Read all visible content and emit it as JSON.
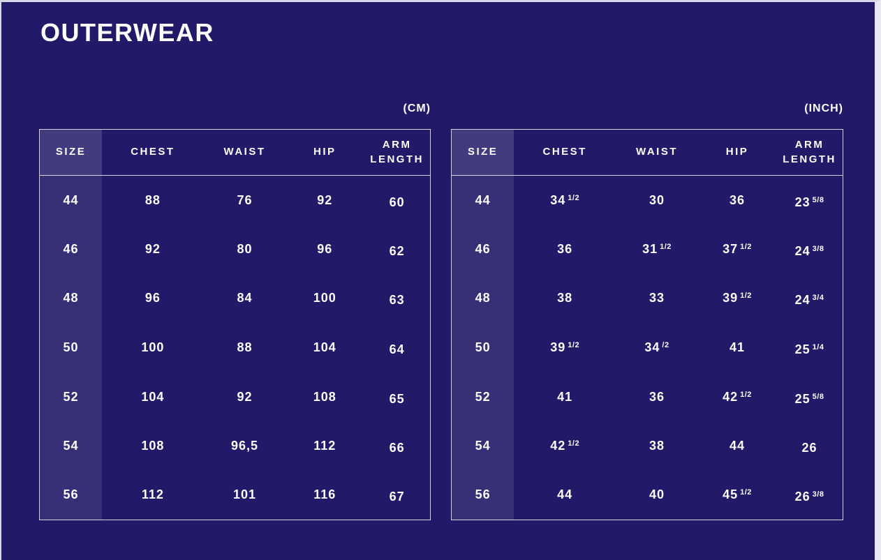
{
  "page": {
    "title": "OUTERWEAR"
  },
  "colors": {
    "background": "#201a68",
    "text": "#ffffff",
    "size_column_tint": "rgba(255,255,255,0.10)",
    "size_header_tint": "rgba(255,255,255,0.15)",
    "table_border": "#eceaf6",
    "edge_strip_top_left": "#d9d7e7",
    "edge_strip_right": "#e9e7f2"
  },
  "chart_data": [
    {
      "type": "table",
      "unit_label": "(CM)",
      "columns": [
        "SIZE",
        "CHEST",
        "WAIST",
        "HIP",
        "ARM LENGTH"
      ],
      "rows": [
        [
          "44",
          "88",
          "76",
          "92",
          "60"
        ],
        [
          "46",
          "92",
          "80",
          "96",
          "62"
        ],
        [
          "48",
          "96",
          "84",
          "100",
          "63"
        ],
        [
          "50",
          "100",
          "88",
          "104",
          "64"
        ],
        [
          "52",
          "104",
          "92",
          "108",
          "65"
        ],
        [
          "54",
          "108",
          "96,5",
          "112",
          "66"
        ],
        [
          "56",
          "112",
          "101",
          "116",
          "67"
        ]
      ]
    },
    {
      "type": "table",
      "unit_label": "(INCH)",
      "columns": [
        "SIZE",
        "CHEST",
        "WAIST",
        "HIP",
        "ARM LENGTH"
      ],
      "rows": [
        [
          "44",
          "34 1/2",
          "30",
          "36",
          "23 5/8"
        ],
        [
          "46",
          "36",
          "31 1/2",
          "37 1/2",
          "24 3/8"
        ],
        [
          "48",
          "38",
          "33",
          "39 1/2",
          "24 3/4"
        ],
        [
          "50",
          "39 1/2",
          "34 /2",
          "41",
          "25 1/4"
        ],
        [
          "52",
          "41",
          "36",
          "42 1/2",
          "25 5/8"
        ],
        [
          "54",
          "42 1/2",
          "38",
          "44",
          "26"
        ],
        [
          "56",
          "44",
          "40",
          "45 1/2",
          "26 3/8"
        ]
      ]
    }
  ]
}
